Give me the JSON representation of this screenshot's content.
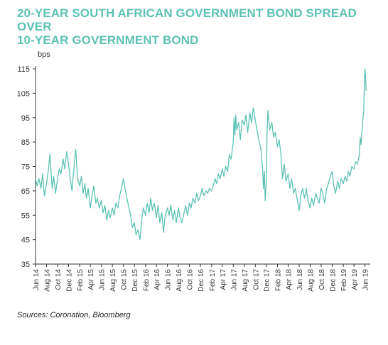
{
  "title_line1": "20-YEAR SOUTH AFRICAN GOVERNMENT BOND SPREAD OVER",
  "title_line2": "10-YEAR GOVERNMENT BOND",
  "source": "Sources: Coronation, Bloomberg",
  "colors": {
    "title": "#5cc2b4",
    "line": "#5cc2b4",
    "axis": "#333333"
  },
  "chart_data": {
    "type": "line",
    "unit_label": "bps",
    "grid": false,
    "ylim": [
      35,
      115
    ],
    "y_ticks": [
      35,
      45,
      55,
      65,
      75,
      85,
      95,
      105,
      115
    ],
    "xlim": [
      "2014-06-01",
      "2019-06-30"
    ],
    "x_ticks": [
      {
        "label": "Jun 14",
        "date": "2014-06-01"
      },
      {
        "label": "Aug 14",
        "date": "2014-08-01"
      },
      {
        "label": "Oct 14",
        "date": "2014-10-01"
      },
      {
        "label": "Dec 14",
        "date": "2014-12-01"
      },
      {
        "label": "Feb 15",
        "date": "2015-02-01"
      },
      {
        "label": "Apr 15",
        "date": "2015-04-01"
      },
      {
        "label": "Jun 15",
        "date": "2015-06-01"
      },
      {
        "label": "Aug 15",
        "date": "2015-08-01"
      },
      {
        "label": "Oct 15",
        "date": "2015-10-01"
      },
      {
        "label": "Dec 15",
        "date": "2015-12-01"
      },
      {
        "label": "Feb 16",
        "date": "2016-02-01"
      },
      {
        "label": "Apr 16",
        "date": "2016-04-01"
      },
      {
        "label": "Jun 16",
        "date": "2016-06-01"
      },
      {
        "label": "Aug 16",
        "date": "2016-08-01"
      },
      {
        "label": "Oct 16",
        "date": "2016-10-01"
      },
      {
        "label": "Dec 16",
        "date": "2016-12-01"
      },
      {
        "label": "Feb 17",
        "date": "2017-02-01"
      },
      {
        "label": "Apr 17",
        "date": "2017-04-01"
      },
      {
        "label": "Jun 17",
        "date": "2017-06-01"
      },
      {
        "label": "Aug 17",
        "date": "2017-08-01"
      },
      {
        "label": "Oct 17",
        "date": "2017-10-01"
      },
      {
        "label": "Dec 17",
        "date": "2017-12-01"
      },
      {
        "label": "Feb 18",
        "date": "2018-02-01"
      },
      {
        "label": "Apr 18",
        "date": "2018-04-01"
      },
      {
        "label": "Jun 18",
        "date": "2018-06-01"
      },
      {
        "label": "Aug 18",
        "date": "2018-08-01"
      },
      {
        "label": "Oct 18",
        "date": "2018-10-01"
      },
      {
        "label": "Dec 18",
        "date": "2018-12-01"
      },
      {
        "label": "Feb 19",
        "date": "2019-02-01"
      },
      {
        "label": "Apr 19",
        "date": "2019-04-01"
      },
      {
        "label": "Jun 19",
        "date": "2019-06-01"
      }
    ],
    "series": [
      {
        "points": [
          [
            "2014-06-01",
            70
          ],
          [
            "2014-06-10",
            67
          ],
          [
            "2014-06-20",
            70
          ],
          [
            "2014-07-01",
            66
          ],
          [
            "2014-07-10",
            72
          ],
          [
            "2014-07-20",
            63
          ],
          [
            "2014-08-01",
            68
          ],
          [
            "2014-08-10",
            73
          ],
          [
            "2014-08-20",
            80
          ],
          [
            "2014-09-01",
            66
          ],
          [
            "2014-09-10",
            71
          ],
          [
            "2014-09-20",
            64
          ],
          [
            "2014-10-01",
            70
          ],
          [
            "2014-10-10",
            74
          ],
          [
            "2014-10-20",
            72
          ],
          [
            "2014-11-01",
            78
          ],
          [
            "2014-11-10",
            74
          ],
          [
            "2014-11-20",
            81
          ],
          [
            "2014-12-01",
            76
          ],
          [
            "2014-12-10",
            70
          ],
          [
            "2014-12-20",
            65
          ],
          [
            "2015-01-01",
            75
          ],
          [
            "2015-01-10",
            82
          ],
          [
            "2015-01-20",
            70
          ],
          [
            "2015-02-01",
            67
          ],
          [
            "2015-02-10",
            71
          ],
          [
            "2015-02-20",
            64
          ],
          [
            "2015-03-01",
            68
          ],
          [
            "2015-03-10",
            62
          ],
          [
            "2015-03-20",
            66
          ],
          [
            "2015-04-01",
            58
          ],
          [
            "2015-04-10",
            63
          ],
          [
            "2015-04-20",
            67
          ],
          [
            "2015-05-01",
            60
          ],
          [
            "2015-05-10",
            62
          ],
          [
            "2015-05-20",
            58
          ],
          [
            "2015-06-01",
            61
          ],
          [
            "2015-06-10",
            56
          ],
          [
            "2015-06-20",
            59
          ],
          [
            "2015-07-01",
            53
          ],
          [
            "2015-07-10",
            57
          ],
          [
            "2015-07-20",
            54
          ],
          [
            "2015-08-01",
            58
          ],
          [
            "2015-08-10",
            55
          ],
          [
            "2015-08-20",
            60
          ],
          [
            "2015-09-01",
            58
          ],
          [
            "2015-09-10",
            63
          ],
          [
            "2015-09-20",
            66
          ],
          [
            "2015-10-01",
            70
          ],
          [
            "2015-10-10",
            66
          ],
          [
            "2015-10-20",
            62
          ],
          [
            "2015-11-01",
            58
          ],
          [
            "2015-11-10",
            55
          ],
          [
            "2015-11-20",
            50
          ],
          [
            "2015-12-01",
            52
          ],
          [
            "2015-12-10",
            47
          ],
          [
            "2015-12-20",
            49
          ],
          [
            "2016-01-01",
            45
          ],
          [
            "2016-01-10",
            53
          ],
          [
            "2016-01-20",
            58
          ],
          [
            "2016-02-01",
            55
          ],
          [
            "2016-02-10",
            60
          ],
          [
            "2016-02-20",
            56
          ],
          [
            "2016-03-01",
            62
          ],
          [
            "2016-03-10",
            57
          ],
          [
            "2016-03-20",
            60
          ],
          [
            "2016-04-01",
            54
          ],
          [
            "2016-04-10",
            59
          ],
          [
            "2016-04-20",
            52
          ],
          [
            "2016-05-01",
            56
          ],
          [
            "2016-05-10",
            48
          ],
          [
            "2016-05-20",
            55
          ],
          [
            "2016-06-01",
            58
          ],
          [
            "2016-06-10",
            55
          ],
          [
            "2016-06-20",
            59
          ],
          [
            "2016-07-01",
            53
          ],
          [
            "2016-07-10",
            57
          ],
          [
            "2016-07-20",
            52
          ],
          [
            "2016-08-01",
            58
          ],
          [
            "2016-08-10",
            54
          ],
          [
            "2016-08-20",
            52
          ],
          [
            "2016-09-01",
            56
          ],
          [
            "2016-09-10",
            59
          ],
          [
            "2016-09-20",
            55
          ],
          [
            "2016-10-01",
            60
          ],
          [
            "2016-10-10",
            58
          ],
          [
            "2016-10-20",
            62
          ],
          [
            "2016-11-01",
            60
          ],
          [
            "2016-11-10",
            64
          ],
          [
            "2016-11-20",
            61
          ],
          [
            "2016-12-01",
            63
          ],
          [
            "2016-12-10",
            66
          ],
          [
            "2016-12-20",
            63
          ],
          [
            "2017-01-01",
            65
          ],
          [
            "2017-01-10",
            64
          ],
          [
            "2017-01-20",
            66
          ],
          [
            "2017-02-01",
            65
          ],
          [
            "2017-02-10",
            67
          ],
          [
            "2017-02-20",
            70
          ],
          [
            "2017-03-01",
            68
          ],
          [
            "2017-03-10",
            72
          ],
          [
            "2017-03-20",
            70
          ],
          [
            "2017-04-01",
            74
          ],
          [
            "2017-04-10",
            71
          ],
          [
            "2017-04-20",
            75
          ],
          [
            "2017-05-01",
            73
          ],
          [
            "2017-05-10",
            80
          ],
          [
            "2017-05-20",
            78
          ],
          [
            "2017-06-01",
            85
          ],
          [
            "2017-06-05",
            95
          ],
          [
            "2017-06-10",
            88
          ],
          [
            "2017-06-15",
            96
          ],
          [
            "2017-06-20",
            90
          ],
          [
            "2017-07-01",
            93
          ],
          [
            "2017-07-10",
            86
          ],
          [
            "2017-07-20",
            94
          ],
          [
            "2017-08-01",
            92
          ],
          [
            "2017-08-10",
            96
          ],
          [
            "2017-08-20",
            89
          ],
          [
            "2017-09-01",
            97
          ],
          [
            "2017-09-10",
            93
          ],
          [
            "2017-09-20",
            99
          ],
          [
            "2017-10-01",
            94
          ],
          [
            "2017-10-10",
            90
          ],
          [
            "2017-10-20",
            86
          ],
          [
            "2017-11-01",
            82
          ],
          [
            "2017-11-10",
            75
          ],
          [
            "2017-11-15",
            66
          ],
          [
            "2017-11-20",
            73
          ],
          [
            "2017-11-25",
            61
          ],
          [
            "2017-12-01",
            68
          ],
          [
            "2017-12-05",
            88
          ],
          [
            "2017-12-10",
            98
          ],
          [
            "2017-12-15",
            94
          ],
          [
            "2017-12-20",
            90
          ],
          [
            "2018-01-01",
            93
          ],
          [
            "2018-01-10",
            87
          ],
          [
            "2018-01-20",
            89
          ],
          [
            "2018-02-01",
            83
          ],
          [
            "2018-02-10",
            86
          ],
          [
            "2018-02-20",
            80
          ],
          [
            "2018-02-25",
            74
          ],
          [
            "2018-03-01",
            70
          ],
          [
            "2018-03-10",
            76
          ],
          [
            "2018-03-20",
            69
          ],
          [
            "2018-04-01",
            72
          ],
          [
            "2018-04-10",
            66
          ],
          [
            "2018-04-20",
            70
          ],
          [
            "2018-05-01",
            64
          ],
          [
            "2018-05-10",
            66
          ],
          [
            "2018-05-20",
            62
          ],
          [
            "2018-06-01",
            57
          ],
          [
            "2018-06-10",
            63
          ],
          [
            "2018-06-20",
            66
          ],
          [
            "2018-07-01",
            62
          ],
          [
            "2018-07-10",
            66
          ],
          [
            "2018-07-20",
            61
          ],
          [
            "2018-08-01",
            58
          ],
          [
            "2018-08-10",
            62
          ],
          [
            "2018-08-20",
            59
          ],
          [
            "2018-09-01",
            64
          ],
          [
            "2018-09-10",
            62
          ],
          [
            "2018-09-20",
            60
          ],
          [
            "2018-10-01",
            66
          ],
          [
            "2018-10-10",
            64
          ],
          [
            "2018-10-20",
            60
          ],
          [
            "2018-11-01",
            66
          ],
          [
            "2018-11-10",
            68
          ],
          [
            "2018-11-20",
            71
          ],
          [
            "2018-12-01",
            73
          ],
          [
            "2018-12-10",
            67
          ],
          [
            "2018-12-20",
            64
          ],
          [
            "2019-01-01",
            69
          ],
          [
            "2019-01-10",
            66
          ],
          [
            "2019-01-20",
            70
          ],
          [
            "2019-02-01",
            68
          ],
          [
            "2019-02-10",
            71
          ],
          [
            "2019-02-20",
            69
          ],
          [
            "2019-03-01",
            73
          ],
          [
            "2019-03-10",
            71
          ],
          [
            "2019-03-20",
            75
          ],
          [
            "2019-04-01",
            74
          ],
          [
            "2019-04-10",
            77
          ],
          [
            "2019-04-20",
            76
          ],
          [
            "2019-05-01",
            80
          ],
          [
            "2019-05-05",
            87
          ],
          [
            "2019-05-10",
            84
          ],
          [
            "2019-05-15",
            89
          ],
          [
            "2019-05-20",
            94
          ],
          [
            "2019-05-25",
            98
          ],
          [
            "2019-05-28",
            108
          ],
          [
            "2019-06-01",
            115
          ],
          [
            "2019-06-04",
            112
          ],
          [
            "2019-06-07",
            106
          ]
        ]
      }
    ]
  }
}
